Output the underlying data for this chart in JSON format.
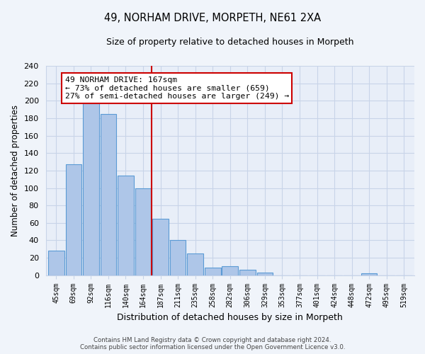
{
  "title": "49, NORHAM DRIVE, MORPETH, NE61 2XA",
  "subtitle": "Size of property relative to detached houses in Morpeth",
  "xlabel": "Distribution of detached houses by size in Morpeth",
  "ylabel": "Number of detached properties",
  "bar_labels": [
    "45sqm",
    "69sqm",
    "92sqm",
    "116sqm",
    "140sqm",
    "164sqm",
    "187sqm",
    "211sqm",
    "235sqm",
    "258sqm",
    "282sqm",
    "306sqm",
    "329sqm",
    "353sqm",
    "377sqm",
    "401sqm",
    "424sqm",
    "448sqm",
    "472sqm",
    "495sqm",
    "519sqm"
  ],
  "bar_values": [
    28,
    127,
    197,
    185,
    114,
    100,
    65,
    40,
    25,
    9,
    10,
    6,
    3,
    0,
    0,
    0,
    0,
    0,
    2,
    0,
    0
  ],
  "bar_color": "#aec6e8",
  "bar_edge_color": "#5b9bd5",
  "vline_x": 5.5,
  "vline_color": "#cc0000",
  "annotation_title": "49 NORHAM DRIVE: 167sqm",
  "annotation_line1": "← 73% of detached houses are smaller (659)",
  "annotation_line2": "27% of semi-detached houses are larger (249) →",
  "annotation_box_color": "#ffffff",
  "annotation_box_edge": "#cc0000",
  "ylim": [
    0,
    240
  ],
  "yticks": [
    0,
    20,
    40,
    60,
    80,
    100,
    120,
    140,
    160,
    180,
    200,
    220,
    240
  ],
  "footer_line1": "Contains HM Land Registry data © Crown copyright and database right 2024.",
  "footer_line2": "Contains public sector information licensed under the Open Government Licence v3.0.",
  "bg_color": "#f0f4fa",
  "plot_bg_color": "#e8eef8",
  "grid_color": "#c8d4e8"
}
